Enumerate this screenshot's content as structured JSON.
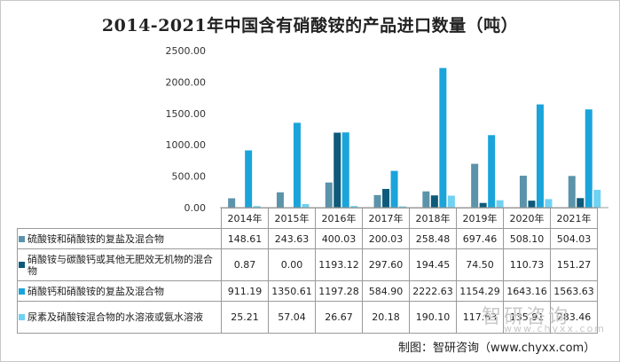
{
  "chart_data": {
    "type": "bar",
    "title": "2014-2021年中国含有硝酸铵的产品进口数量（吨）",
    "categories": [
      "2014年",
      "2015年",
      "2016年",
      "2017年",
      "2018年",
      "2019年",
      "2020年",
      "2021年"
    ],
    "ylim": [
      0,
      2500
    ],
    "yticks": [
      "0.00",
      "500.00",
      "1000.00",
      "1500.00",
      "2000.00",
      "2500.00"
    ],
    "grid": false,
    "legend": "table-left",
    "series": [
      {
        "name": "硫酸铵和硝酸铵的复盐及混合物",
        "color": "#5b93aa",
        "values": [
          148.61,
          243.63,
          400.03,
          200.03,
          258.48,
          697.46,
          508.1,
          504.03
        ],
        "labels": [
          "148.61",
          "243.63",
          "400.03",
          "200.03",
          "258.48",
          "697.46",
          "508.10",
          "504.03"
        ]
      },
      {
        "name": "硝酸铵与碳酸钙或其他无肥效无机物的混合物",
        "color": "#0d5a7a",
        "values": [
          0.87,
          0.0,
          1193.12,
          297.6,
          194.45,
          74.5,
          110.73,
          151.27
        ],
        "labels": [
          "0.87",
          "0.00",
          "1193.12",
          "297.60",
          "194.45",
          "74.50",
          "110.73",
          "151.27"
        ]
      },
      {
        "name": "硝酸钙和硝酸铵的复盐及混合物",
        "color": "#1ba4da",
        "values": [
          911.19,
          1350.61,
          1197.28,
          584.9,
          2222.63,
          1154.29,
          1643.16,
          1563.63
        ],
        "labels": [
          "911.19",
          "1350.61",
          "1197.28",
          "584.90",
          "2222.63",
          "1154.29",
          "1643.16",
          "1563.63"
        ]
      },
      {
        "name": "尿素及硝酸铵混合物的水溶液或氨水溶液",
        "color": "#70d2f2",
        "values": [
          25.21,
          57.04,
          26.67,
          20.18,
          190.1,
          117.63,
          135.91,
          283.46
        ],
        "labels": [
          "25.21",
          "57.04",
          "26.67",
          "20.18",
          "190.10",
          "117.63",
          "135.91",
          "283.46"
        ]
      }
    ]
  },
  "source": "制图：智研咨询（www.chyxx.com）",
  "watermark": {
    "text": "智研咨询",
    "url": "www.chyxx.com"
  }
}
